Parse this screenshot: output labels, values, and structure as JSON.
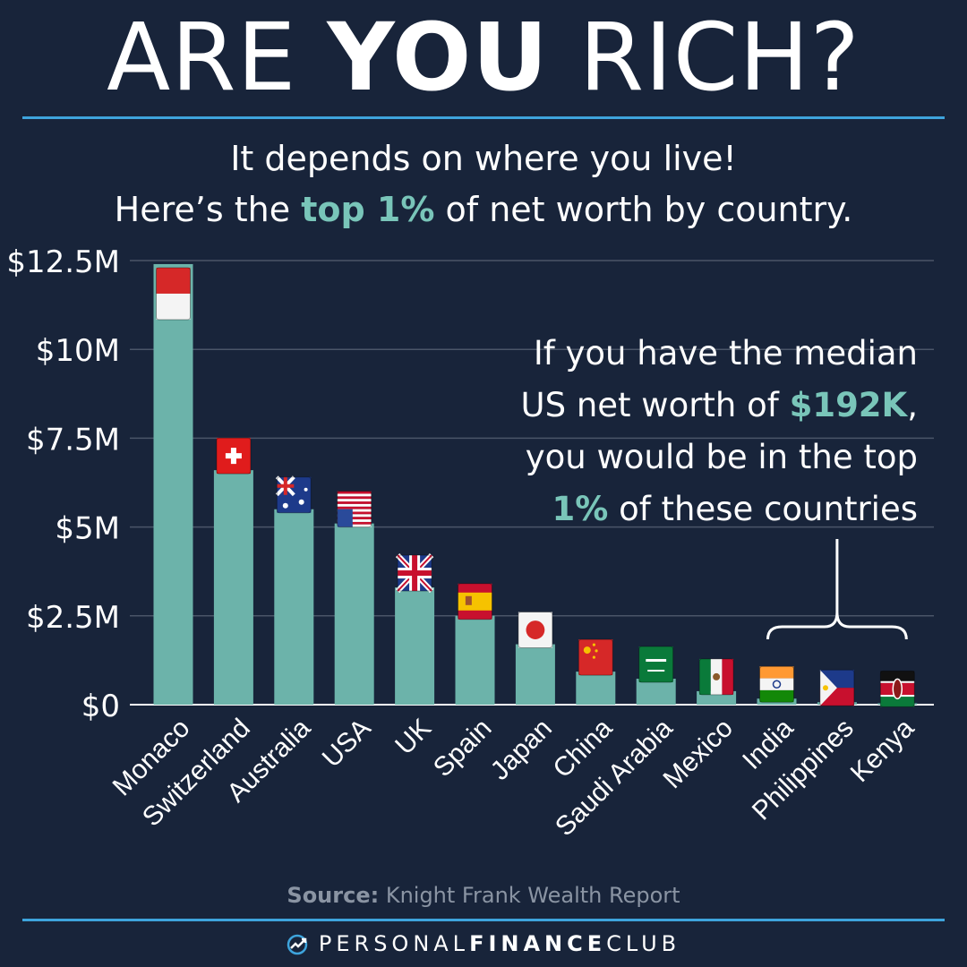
{
  "header": {
    "title_part1": "ARE ",
    "title_part2": "YOU",
    "title_part3": " RICH?",
    "subtitle_line1": "It depends on where you live!",
    "subtitle_line2_pre": "Here’s the ",
    "subtitle_line2_accent": "top 1%",
    "subtitle_line2_post": " of net worth by country."
  },
  "callout": {
    "line1": "If you have the median",
    "line2_pre": "US net worth of ",
    "line2_accent": "$192K",
    "line2_post": ",",
    "line3": "you would be in the top",
    "line4_accent": "1%",
    "line4_post": " of these countries"
  },
  "source": {
    "label": "Source:",
    "text": " Knight Frank Wealth Report"
  },
  "footer": {
    "brand_light": "PERSONAL",
    "brand_bold": "FINANCE",
    "brand_end": "CLUB"
  },
  "colors": {
    "background": "#18243a",
    "bar": "#6cb3aa",
    "accent": "#79c5b9",
    "rule": "#3ea4dc",
    "grid": "#4a5568"
  },
  "chart_data": {
    "type": "bar",
    "categories": [
      "Monaco",
      "Switzerland",
      "Australia",
      "USA",
      "UK",
      "Spain",
      "Japan",
      "China",
      "Saudi Arabia",
      "Mexico",
      "India",
      "Philippines",
      "Kenya"
    ],
    "values": [
      12.4,
      6.6,
      5.5,
      5.1,
      3.3,
      2.5,
      1.7,
      0.93,
      0.73,
      0.38,
      0.17,
      0.07,
      0.04
    ],
    "unit": "$M",
    "ylim": [
      0,
      12.5
    ],
    "yticks": [
      {
        "value": 0,
        "label": "$0"
      },
      {
        "value": 2.5,
        "label": "$2.5M"
      },
      {
        "value": 5,
        "label": "$5M"
      },
      {
        "value": 7.5,
        "label": "$7.5M"
      },
      {
        "value": 10,
        "label": "$10M"
      },
      {
        "value": 12.5,
        "label": "$12.5M"
      }
    ],
    "grid": true,
    "bracket_over": [
      "India",
      "Philippines",
      "Kenya"
    ],
    "flag_icons": [
      "monaco-flag-icon",
      "switzerland-flag-icon",
      "australia-flag-icon",
      "usa-flag-icon",
      "uk-flag-icon",
      "spain-flag-icon",
      "japan-flag-icon",
      "china-flag-icon",
      "saudi-arabia-flag-icon",
      "mexico-flag-icon",
      "india-flag-icon",
      "philippines-flag-icon",
      "kenya-flag-icon"
    ]
  }
}
